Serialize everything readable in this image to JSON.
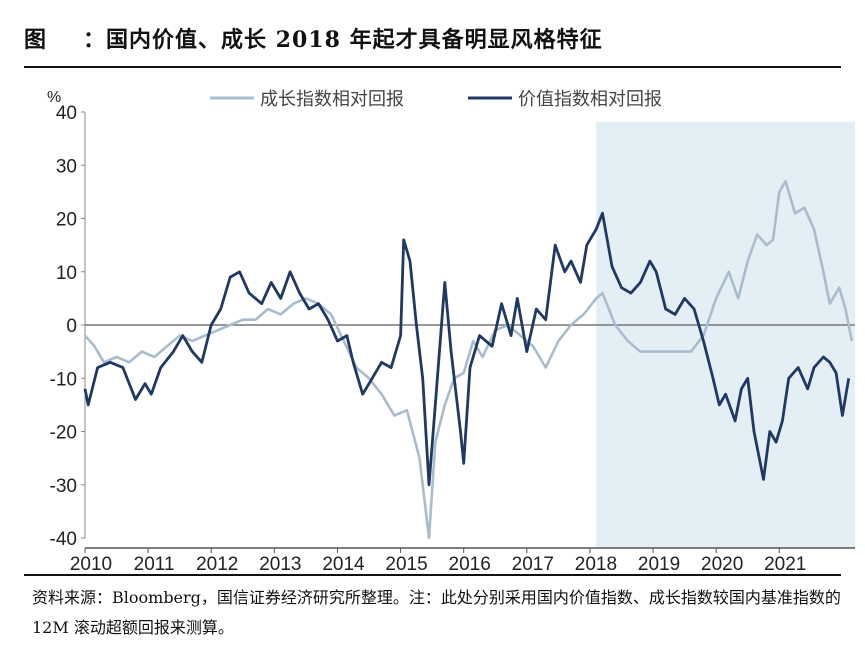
{
  "header": {
    "label": "图",
    "title": "：国内价值、成长 2018 年起才具备明显风格特征"
  },
  "footer": {
    "note": "资料来源：Bloomberg，国信证券经济研究所整理。注：此处分别采用国内价值指数、成长指数较国内基准指数的 12M 滚动超额回报来测算。"
  },
  "chart_data": {
    "type": "line",
    "yunit": "%",
    "ylim": [
      -40,
      40
    ],
    "yticks": [
      -40,
      -30,
      -20,
      -10,
      0,
      10,
      20,
      30,
      40
    ],
    "xlim": [
      2010,
      2022.2
    ],
    "xticks": [
      2010,
      2011,
      2012,
      2013,
      2014,
      2015,
      2016,
      2017,
      2018,
      2019,
      2020,
      2021
    ],
    "shaded_from": 2018.1,
    "legend_position": "top",
    "series": [
      {
        "name": "成长指数相对回报",
        "color": "#a9bccd",
        "points": [
          [
            2010.0,
            -2
          ],
          [
            2010.15,
            -4
          ],
          [
            2010.3,
            -7
          ],
          [
            2010.5,
            -6
          ],
          [
            2010.7,
            -7
          ],
          [
            2010.9,
            -5
          ],
          [
            2011.1,
            -6
          ],
          [
            2011.3,
            -4
          ],
          [
            2011.5,
            -2
          ],
          [
            2011.7,
            -3
          ],
          [
            2011.9,
            -2
          ],
          [
            2012.1,
            -1
          ],
          [
            2012.3,
            0
          ],
          [
            2012.5,
            1
          ],
          [
            2012.7,
            1
          ],
          [
            2012.9,
            3
          ],
          [
            2013.1,
            2
          ],
          [
            2013.3,
            4
          ],
          [
            2013.5,
            5
          ],
          [
            2013.7,
            4
          ],
          [
            2013.9,
            2
          ],
          [
            2014.1,
            -3
          ],
          [
            2014.3,
            -8
          ],
          [
            2014.5,
            -10
          ],
          [
            2014.7,
            -13
          ],
          [
            2014.9,
            -17
          ],
          [
            2015.1,
            -16
          ],
          [
            2015.3,
            -25
          ],
          [
            2015.45,
            -40
          ],
          [
            2015.55,
            -22
          ],
          [
            2015.7,
            -15
          ],
          [
            2015.85,
            -10
          ],
          [
            2016.0,
            -9
          ],
          [
            2016.15,
            -3
          ],
          [
            2016.3,
            -6
          ],
          [
            2016.5,
            -1
          ],
          [
            2016.7,
            0
          ],
          [
            2016.9,
            -2
          ],
          [
            2017.1,
            -4
          ],
          [
            2017.3,
            -8
          ],
          [
            2017.5,
            -3
          ],
          [
            2017.7,
            0
          ],
          [
            2017.9,
            2
          ],
          [
            2018.1,
            5
          ],
          [
            2018.2,
            6
          ],
          [
            2018.4,
            0
          ],
          [
            2018.6,
            -3
          ],
          [
            2018.8,
            -5
          ],
          [
            2019.0,
            -5
          ],
          [
            2019.2,
            -5
          ],
          [
            2019.4,
            -5
          ],
          [
            2019.6,
            -5
          ],
          [
            2019.8,
            -2
          ],
          [
            2020.0,
            5
          ],
          [
            2020.2,
            10
          ],
          [
            2020.35,
            5
          ],
          [
            2020.5,
            12
          ],
          [
            2020.65,
            17
          ],
          [
            2020.8,
            15
          ],
          [
            2020.9,
            16
          ],
          [
            2021.0,
            25
          ],
          [
            2021.1,
            27
          ],
          [
            2021.25,
            21
          ],
          [
            2021.4,
            22
          ],
          [
            2021.55,
            18
          ],
          [
            2021.7,
            10
          ],
          [
            2021.8,
            4
          ],
          [
            2021.95,
            7
          ],
          [
            2022.05,
            3
          ],
          [
            2022.15,
            -3
          ]
        ]
      },
      {
        "name": "价值指数相对回报",
        "color": "#1f3864",
        "points": [
          [
            2010.0,
            -12
          ],
          [
            2010.05,
            -15
          ],
          [
            2010.2,
            -8
          ],
          [
            2010.4,
            -7
          ],
          [
            2010.6,
            -8
          ],
          [
            2010.8,
            -14
          ],
          [
            2010.95,
            -11
          ],
          [
            2011.05,
            -13
          ],
          [
            2011.2,
            -8
          ],
          [
            2011.4,
            -5
          ],
          [
            2011.55,
            -2
          ],
          [
            2011.7,
            -5
          ],
          [
            2011.85,
            -7
          ],
          [
            2012.0,
            0
          ],
          [
            2012.15,
            3
          ],
          [
            2012.3,
            9
          ],
          [
            2012.45,
            10
          ],
          [
            2012.6,
            6
          ],
          [
            2012.8,
            4
          ],
          [
            2012.95,
            8
          ],
          [
            2013.1,
            5
          ],
          [
            2013.25,
            10
          ],
          [
            2013.4,
            6
          ],
          [
            2013.55,
            3
          ],
          [
            2013.7,
            4
          ],
          [
            2013.85,
            1
          ],
          [
            2014.0,
            -3
          ],
          [
            2014.15,
            -2
          ],
          [
            2014.25,
            -7
          ],
          [
            2014.4,
            -13
          ],
          [
            2014.55,
            -10
          ],
          [
            2014.7,
            -7
          ],
          [
            2014.85,
            -8
          ],
          [
            2015.0,
            -2
          ],
          [
            2015.05,
            16
          ],
          [
            2015.15,
            12
          ],
          [
            2015.25,
            0
          ],
          [
            2015.35,
            -10
          ],
          [
            2015.45,
            -30
          ],
          [
            2015.55,
            -15
          ],
          [
            2015.7,
            8
          ],
          [
            2015.8,
            -5
          ],
          [
            2015.95,
            -20
          ],
          [
            2016.0,
            -26
          ],
          [
            2016.1,
            -8
          ],
          [
            2016.25,
            -2
          ],
          [
            2016.45,
            -4
          ],
          [
            2016.6,
            4
          ],
          [
            2016.75,
            -2
          ],
          [
            2016.85,
            5
          ],
          [
            2017.0,
            -5
          ],
          [
            2017.15,
            3
          ],
          [
            2017.3,
            1
          ],
          [
            2017.45,
            15
          ],
          [
            2017.6,
            10
          ],
          [
            2017.7,
            12
          ],
          [
            2017.85,
            8
          ],
          [
            2017.95,
            15
          ],
          [
            2018.1,
            18
          ],
          [
            2018.2,
            21
          ],
          [
            2018.35,
            11
          ],
          [
            2018.5,
            7
          ],
          [
            2018.65,
            6
          ],
          [
            2018.8,
            8
          ],
          [
            2018.95,
            12
          ],
          [
            2019.05,
            10
          ],
          [
            2019.2,
            3
          ],
          [
            2019.35,
            2
          ],
          [
            2019.5,
            5
          ],
          [
            2019.65,
            3
          ],
          [
            2019.8,
            -3
          ],
          [
            2019.95,
            -10
          ],
          [
            2020.05,
            -15
          ],
          [
            2020.15,
            -13
          ],
          [
            2020.3,
            -18
          ],
          [
            2020.4,
            -12
          ],
          [
            2020.5,
            -10
          ],
          [
            2020.6,
            -20
          ],
          [
            2020.75,
            -29
          ],
          [
            2020.85,
            -20
          ],
          [
            2020.95,
            -22
          ],
          [
            2021.05,
            -18
          ],
          [
            2021.15,
            -10
          ],
          [
            2021.3,
            -8
          ],
          [
            2021.45,
            -12
          ],
          [
            2021.55,
            -8
          ],
          [
            2021.7,
            -6
          ],
          [
            2021.8,
            -7
          ],
          [
            2021.9,
            -9
          ],
          [
            2022.0,
            -17
          ],
          [
            2022.1,
            -10
          ]
        ]
      }
    ]
  }
}
